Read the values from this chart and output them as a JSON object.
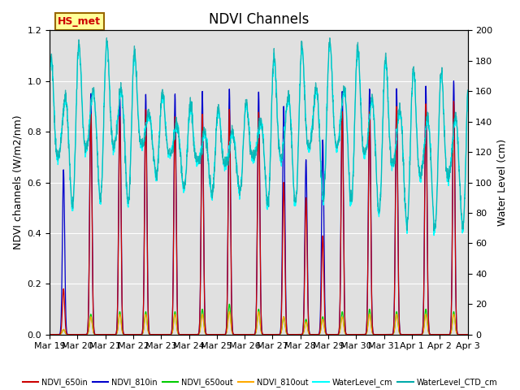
{
  "title": "NDVI Channels",
  "ylabel_left": "NDVI channels (W/m2/nm)",
  "ylabel_right": "Water Level (cm)",
  "ylim_left": [
    0,
    1.2
  ],
  "ylim_right": [
    0,
    200
  ],
  "xlim": [
    0,
    15.0
  ],
  "xtick_labels": [
    "Mar 19",
    "Mar 20",
    "Mar 21",
    "Mar 22",
    "Mar 23",
    "Mar 24",
    "Mar 25",
    "Mar 26",
    "Mar 27",
    "Mar 28",
    "Mar 29",
    "Mar 30",
    "Mar 31",
    "Apr 1",
    "Apr 2",
    "Apr 3"
  ],
  "xtick_positions": [
    0,
    1,
    2,
    3,
    4,
    5,
    6,
    7,
    8,
    9,
    10,
    11,
    12,
    13,
    14,
    15
  ],
  "annotation_text": "HS_met",
  "annotation_color": "#cc0000",
  "annotation_bg": "#ffff99",
  "annotation_border": "#996600",
  "colors": {
    "NDVI_650in": "#cc0000",
    "NDVI_810in": "#0000cc",
    "NDVI_650out": "#00cc00",
    "NDVI_810out": "#ffaa00",
    "WaterLevel_cm": "#00ffff",
    "WaterLevel_CTD_cm": "#00aaaa"
  },
  "legend_labels": [
    "NDVI_650in",
    "NDVI_810in",
    "NDVI_650out",
    "NDVI_810out",
    "WaterLevel_cm",
    "WaterLevel_CTD_cm"
  ],
  "background_color": "#e0e0e0",
  "title_fontsize": 12,
  "axis_label_fontsize": 9,
  "tick_fontsize": 8
}
